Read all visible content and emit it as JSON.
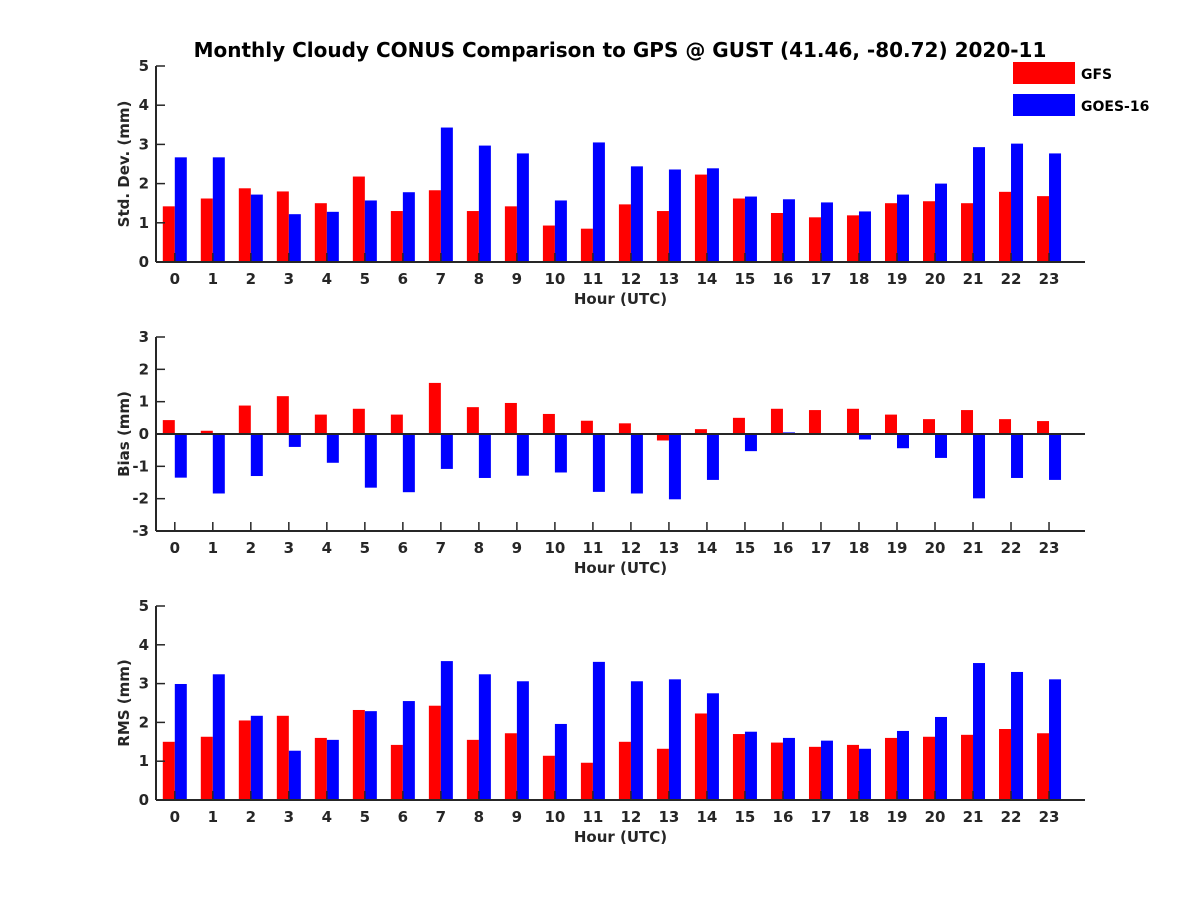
{
  "title": "Monthly Cloudy CONUS Comparison to GPS @ GUST (41.46, -80.72) 2020-11",
  "legend": {
    "placement": "top-right",
    "entries": [
      {
        "name": "GFS",
        "color": "#ff0000"
      },
      {
        "name": "GOES-16",
        "color": "#0000ff"
      }
    ]
  },
  "chart_data": [
    {
      "type": "bar",
      "xlabel": "Hour (UTC)",
      "ylabel": "Std. Dev. (mm)",
      "ylim": [
        0,
        5
      ],
      "yticks": [
        0,
        1,
        2,
        3,
        4,
        5
      ],
      "grid": false,
      "categories": [
        "0",
        "1",
        "2",
        "3",
        "4",
        "5",
        "6",
        "7",
        "8",
        "9",
        "10",
        "11",
        "12",
        "13",
        "14",
        "15",
        "16",
        "17",
        "18",
        "19",
        "20",
        "21",
        "22",
        "23"
      ],
      "series": [
        {
          "name": "GFS",
          "color": "#ff0000",
          "values": [
            1.42,
            1.62,
            1.88,
            1.8,
            1.5,
            2.18,
            1.3,
            1.83,
            1.3,
            1.42,
            0.93,
            0.85,
            1.47,
            1.3,
            2.23,
            1.62,
            1.25,
            1.14,
            1.19,
            1.5,
            1.55,
            1.5,
            1.79,
            1.68
          ]
        },
        {
          "name": "GOES-16",
          "color": "#0000ff",
          "values": [
            2.67,
            2.67,
            1.72,
            1.22,
            1.28,
            1.57,
            1.78,
            3.43,
            2.97,
            2.77,
            1.57,
            3.05,
            2.44,
            2.36,
            2.39,
            1.67,
            1.6,
            1.52,
            1.29,
            1.72,
            2.0,
            2.93,
            3.02,
            2.77
          ]
        }
      ]
    },
    {
      "type": "bar",
      "xlabel": "Hour (UTC)",
      "ylabel": "Bias (mm)",
      "ylim": [
        -3,
        3
      ],
      "yticks": [
        -3,
        -2,
        -1,
        0,
        1,
        2,
        3
      ],
      "grid": false,
      "categories": [
        "0",
        "1",
        "2",
        "3",
        "4",
        "5",
        "6",
        "7",
        "8",
        "9",
        "10",
        "11",
        "12",
        "13",
        "14",
        "15",
        "16",
        "17",
        "18",
        "19",
        "20",
        "21",
        "22",
        "23"
      ],
      "series": [
        {
          "name": "GFS",
          "color": "#ff0000",
          "values": [
            0.43,
            0.1,
            0.88,
            1.17,
            0.6,
            0.78,
            0.6,
            1.58,
            0.83,
            0.96,
            0.62,
            0.41,
            0.33,
            -0.2,
            0.15,
            0.5,
            0.78,
            0.74,
            0.78,
            0.6,
            0.46,
            0.74,
            0.46,
            0.4
          ]
        },
        {
          "name": "GOES-16",
          "color": "#0000ff",
          "values": [
            -1.35,
            -1.84,
            -1.3,
            -0.4,
            -0.89,
            -1.66,
            -1.8,
            -1.08,
            -1.36,
            -1.29,
            -1.19,
            -1.79,
            -1.84,
            -2.02,
            -1.42,
            -0.53,
            0.05,
            0.0,
            -0.17,
            -0.44,
            -0.74,
            -1.99,
            -1.36,
            -1.42
          ]
        }
      ]
    },
    {
      "type": "bar",
      "xlabel": "Hour (UTC)",
      "ylabel": "RMS (mm)",
      "ylim": [
        0,
        5
      ],
      "yticks": [
        0,
        1,
        2,
        3,
        4,
        5
      ],
      "grid": false,
      "categories": [
        "0",
        "1",
        "2",
        "3",
        "4",
        "5",
        "6",
        "7",
        "8",
        "9",
        "10",
        "11",
        "12",
        "13",
        "14",
        "15",
        "16",
        "17",
        "18",
        "19",
        "20",
        "21",
        "22",
        "23"
      ],
      "series": [
        {
          "name": "GFS",
          "color": "#ff0000",
          "values": [
            1.5,
            1.63,
            2.05,
            2.17,
            1.6,
            2.32,
            1.42,
            2.43,
            1.55,
            1.72,
            1.14,
            0.96,
            1.5,
            1.32,
            2.23,
            1.7,
            1.48,
            1.37,
            1.42,
            1.6,
            1.63,
            1.68,
            1.83,
            1.72
          ]
        },
        {
          "name": "GOES-16",
          "color": "#0000ff",
          "values": [
            2.99,
            3.24,
            2.17,
            1.27,
            1.55,
            2.29,
            2.55,
            3.58,
            3.24,
            3.06,
            1.96,
            3.56,
            3.06,
            3.11,
            2.75,
            1.76,
            1.6,
            1.53,
            1.32,
            1.78,
            2.14,
            3.53,
            3.3,
            3.11
          ]
        }
      ]
    }
  ]
}
